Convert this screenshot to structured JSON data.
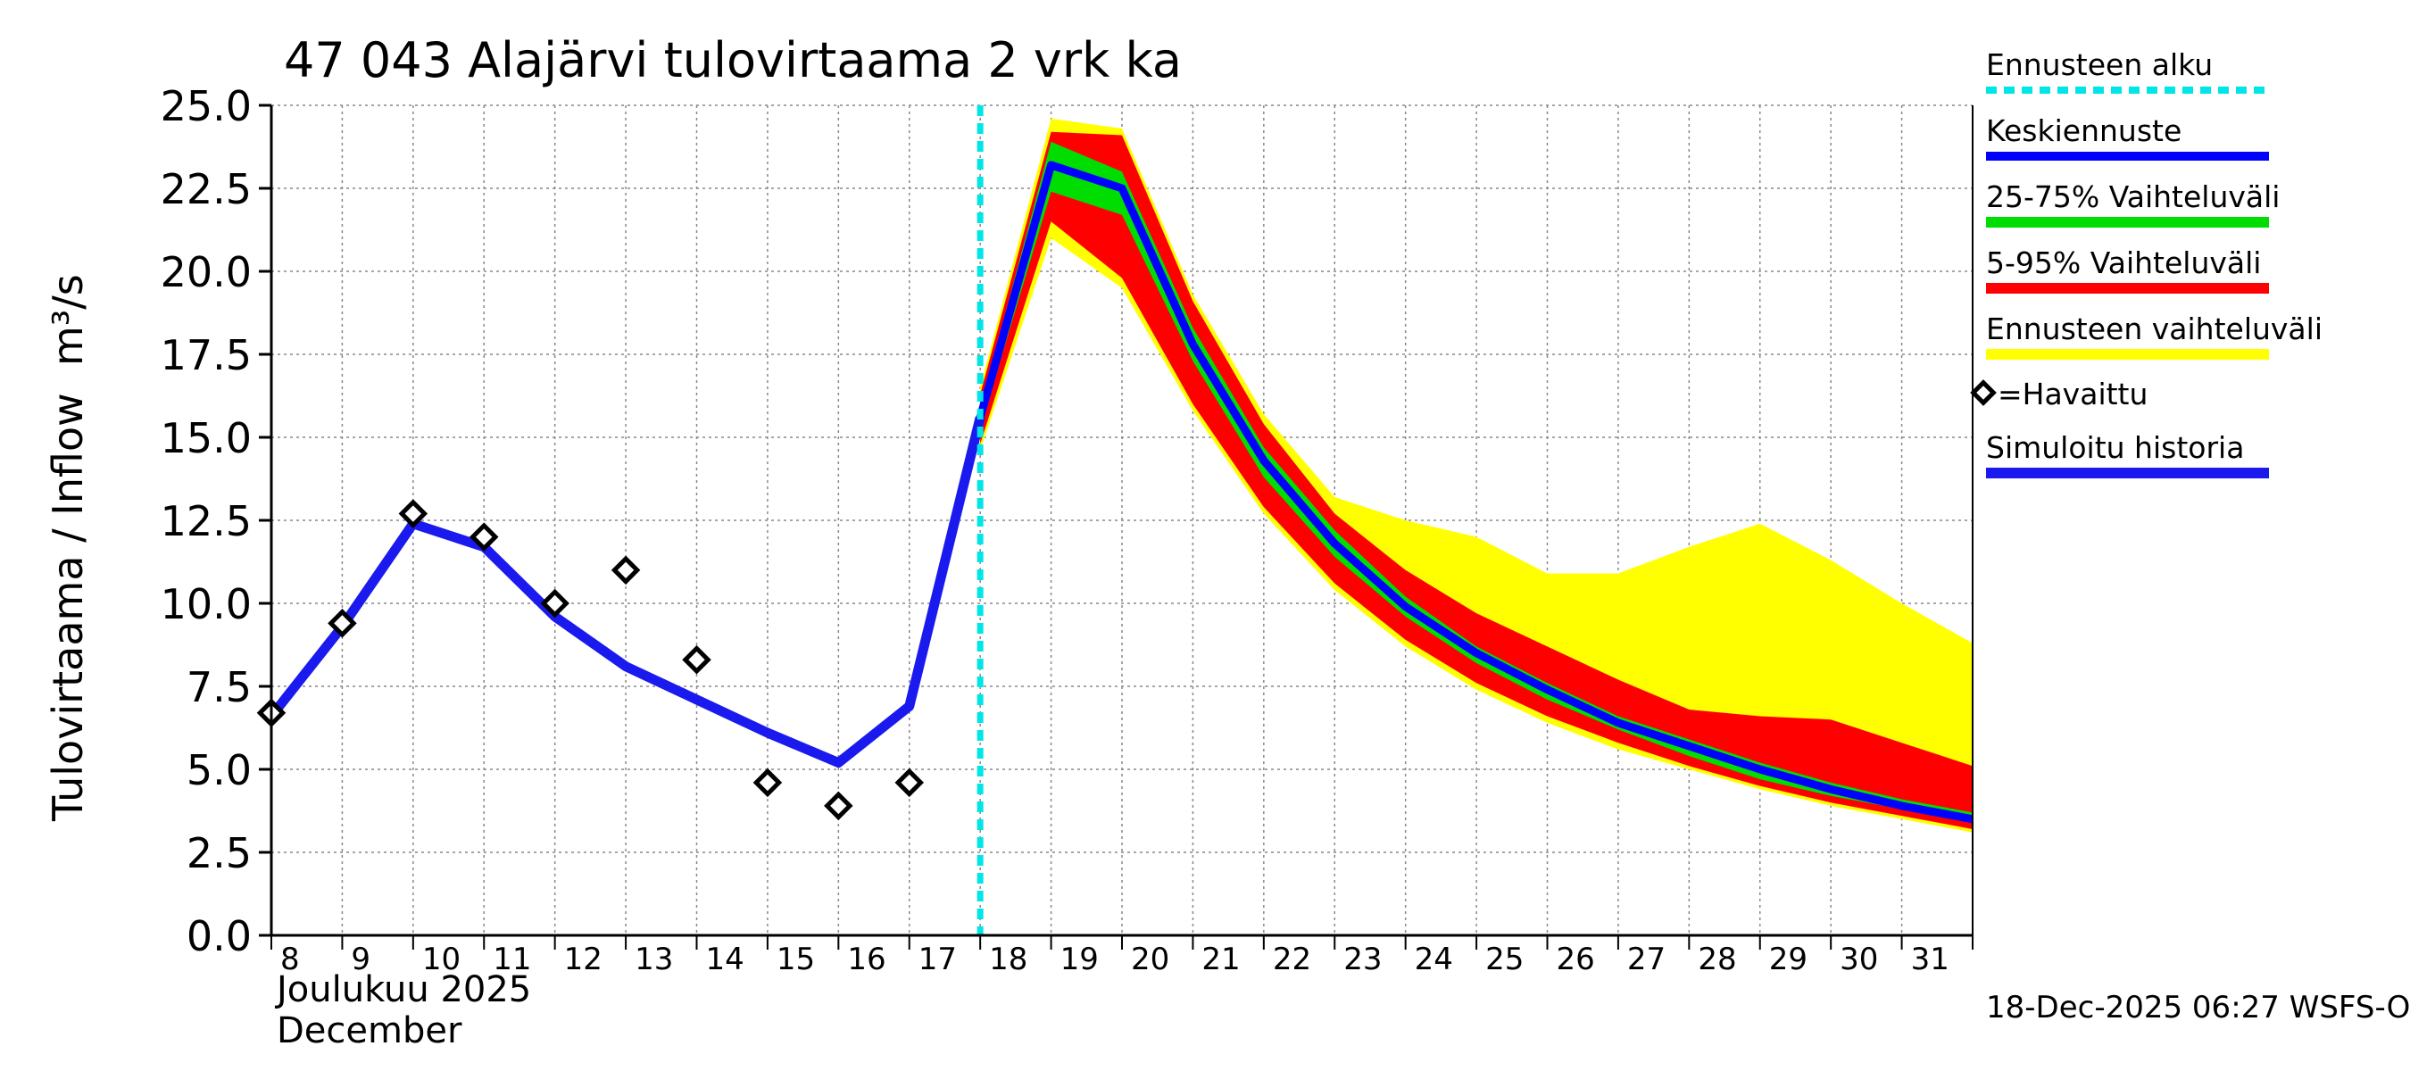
{
  "chart_data": {
    "type": "area",
    "title": "47 043 Alajärvi tulovirtaama 2 vrk ka",
    "ylabel": "Tulovirtaama / Inflow",
    "yunit": "m³/s",
    "xlabel_fi": "Joulukuu  2025",
    "xlabel_en": "December",
    "ylim": [
      0,
      25
    ],
    "yticks": [
      "0.0",
      "2.5",
      "5.0",
      "7.5",
      "10.0",
      "12.5",
      "15.0",
      "17.5",
      "20.0",
      "22.5",
      "25.0"
    ],
    "xlim": [
      8,
      32
    ],
    "xticks": [
      "8",
      "9",
      "10",
      "11",
      "12",
      "13",
      "14",
      "15",
      "16",
      "17",
      "18",
      "19",
      "20",
      "21",
      "22",
      "23",
      "24",
      "25",
      "26",
      "27",
      "28",
      "29",
      "30",
      "31"
    ],
    "forecast_start": 18,
    "footer": "18-Dec-2025 06:27 WSFS-O",
    "colors": {
      "forecast_start": "#00e5e5",
      "median": "#0000ff",
      "p25_75": "#00dd00",
      "p5_95": "#ff0000",
      "full_range": "#ffff00",
      "observed": "#000000",
      "simulated": "#1a1aee"
    },
    "legend": {
      "forecast_start": "Ennusteen alku",
      "median": "Keskiennuste",
      "p25_75": "25-75% Vaihteluväli",
      "p5_95": "5-95% Vaihteluväli",
      "full_range": "Ennusteen vaihteluväli",
      "observed": "=Havaittu",
      "simulated": "Simuloitu historia"
    },
    "simulated_history": {
      "x": [
        8,
        9,
        10,
        11,
        12,
        13,
        14,
        15,
        16,
        17,
        18
      ],
      "y": [
        6.6,
        9.3,
        12.4,
        11.7,
        9.6,
        8.1,
        7.1,
        6.1,
        5.2,
        6.9,
        15.6
      ]
    },
    "observed": {
      "x": [
        8,
        9,
        10,
        11,
        12,
        13,
        14,
        15,
        16,
        17
      ],
      "y": [
        6.7,
        9.4,
        12.7,
        12.0,
        10.0,
        11.0,
        8.3,
        4.6,
        3.9,
        4.6
      ]
    },
    "forecast": {
      "x": [
        18,
        19,
        20,
        21,
        22,
        23,
        24,
        25,
        26,
        27,
        28,
        29,
        30,
        31,
        32
      ],
      "median": [
        15.6,
        23.2,
        22.5,
        17.8,
        14.3,
        11.8,
        9.9,
        8.5,
        7.4,
        6.4,
        5.7,
        5.0,
        4.4,
        3.9,
        3.5
      ],
      "p25": [
        15.3,
        22.4,
        21.7,
        17.3,
        13.8,
        11.4,
        9.6,
        8.2,
        7.1,
        6.2,
        5.4,
        4.7,
        4.2,
        3.8,
        3.4
      ],
      "p75": [
        15.9,
        23.9,
        23.0,
        18.3,
        14.7,
        12.2,
        10.2,
        8.7,
        7.6,
        6.6,
        5.9,
        5.2,
        4.6,
        4.1,
        3.7
      ],
      "p5": [
        14.8,
        21.5,
        19.8,
        16.0,
        12.9,
        10.6,
        8.9,
        7.6,
        6.6,
        5.8,
        5.1,
        4.5,
        4.0,
        3.6,
        3.2
      ],
      "p95": [
        16.3,
        24.2,
        24.1,
        19.1,
        15.4,
        12.7,
        11.0,
        9.7,
        8.7,
        7.7,
        6.8,
        6.6,
        6.5,
        5.8,
        5.1
      ],
      "min": [
        14.6,
        21.0,
        19.5,
        15.8,
        12.7,
        10.4,
        8.7,
        7.4,
        6.4,
        5.6,
        5.0,
        4.4,
        3.9,
        3.5,
        3.1
      ],
      "max": [
        16.5,
        24.6,
        24.3,
        19.3,
        15.7,
        13.2,
        12.5,
        12.0,
        10.9,
        10.9,
        11.7,
        12.4,
        11.3,
        10.0,
        8.8
      ]
    }
  }
}
